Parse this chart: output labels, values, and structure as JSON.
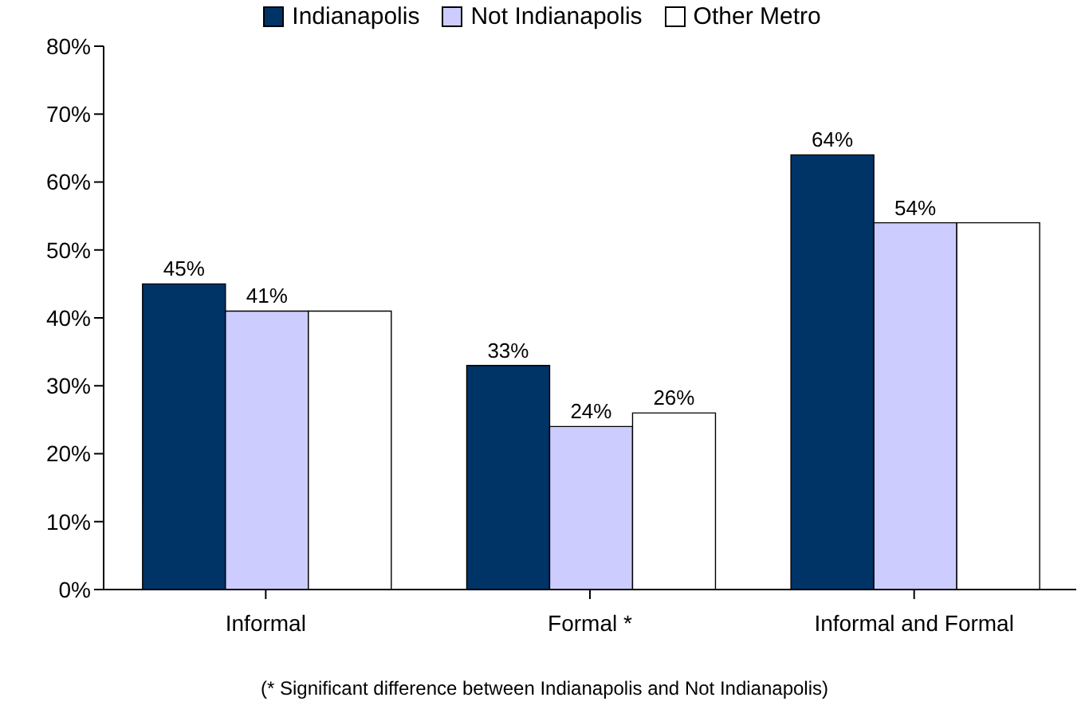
{
  "chart_data": {
    "type": "bar",
    "categories": [
      "Informal",
      "Formal *",
      "Informal and Formal"
    ],
    "series": [
      {
        "name": "Indianapolis",
        "color": "#003366",
        "values": [
          45,
          33,
          64
        ],
        "value_labels": [
          "45%",
          "33%",
          "64%"
        ]
      },
      {
        "name": "Not Indianapolis",
        "color": "#ccccff",
        "values": [
          41,
          24,
          54
        ],
        "value_labels": [
          "41%",
          "24%",
          "54%"
        ]
      },
      {
        "name": "Other Metro",
        "color": "#ffffff",
        "values": [
          41,
          26,
          54
        ],
        "value_labels": [
          null,
          "26%",
          null
        ]
      }
    ],
    "ylim": [
      0,
      80
    ],
    "yticks": [
      {
        "value": 0,
        "label": "0%"
      },
      {
        "value": 10,
        "label": "10%"
      },
      {
        "value": 20,
        "label": "20%"
      },
      {
        "value": 30,
        "label": "30%"
      },
      {
        "value": 40,
        "label": "40%"
      },
      {
        "value": 50,
        "label": "50%"
      },
      {
        "value": 60,
        "label": "60%"
      },
      {
        "value": 70,
        "label": "70%"
      },
      {
        "value": 80,
        "label": "80%"
      }
    ],
    "legend": "top",
    "grid": false,
    "annotations": [
      "(* Significant difference between Indianapolis and Not Indianapolis)"
    ]
  }
}
